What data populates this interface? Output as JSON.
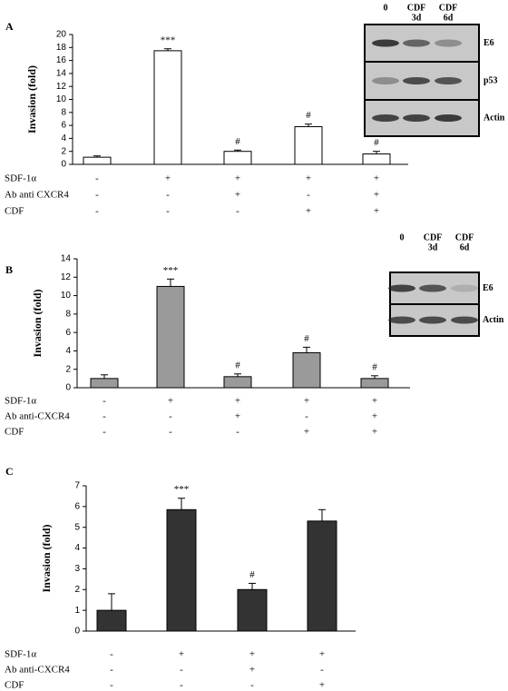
{
  "chart_data": [
    {
      "type": "bar",
      "panel": "A",
      "y_label": "Invasion (fold)",
      "color": "#ffffff",
      "values": [
        1.1,
        17.5,
        2.0,
        5.8,
        1.6
      ],
      "errors": [
        0.2,
        0.3,
        0.2,
        0.4,
        0.4
      ],
      "annotations": [
        null,
        "***",
        "#",
        "#",
        "#"
      ],
      "ylim": [
        0,
        20
      ],
      "yticks": [
        0,
        2,
        4,
        6,
        8,
        10,
        12,
        14,
        16,
        18,
        20
      ],
      "conditions": [
        {
          "label": "SDF-1α",
          "signs": [
            "-",
            "+",
            "+",
            "+",
            "+"
          ]
        },
        {
          "label": "Ab anti CXCR4",
          "signs": [
            "-",
            "-",
            "+",
            "-",
            "+"
          ]
        },
        {
          "label": "CDF",
          "signs": [
            "-",
            "-",
            "-",
            "+",
            "+"
          ]
        }
      ],
      "blot": {
        "columns": [
          [
            "0"
          ],
          [
            "CDF",
            "3d"
          ],
          [
            "CDF",
            "6d"
          ]
        ],
        "rows": [
          "E6",
          "p53",
          "Actin"
        ]
      }
    },
    {
      "type": "bar",
      "panel": "B",
      "y_label": "Invasion (fold)",
      "color": "#9a9a9a",
      "values": [
        1.0,
        11.0,
        1.2,
        3.8,
        1.0
      ],
      "errors": [
        0.4,
        0.8,
        0.3,
        0.6,
        0.3
      ],
      "annotations": [
        null,
        "***",
        "#",
        "#",
        "#"
      ],
      "ylim": [
        0,
        14
      ],
      "yticks": [
        0,
        2,
        4,
        6,
        8,
        10,
        12,
        14
      ],
      "conditions": [
        {
          "label": "SDF-1α",
          "signs": [
            "-",
            "+",
            "+",
            "+",
            "+"
          ]
        },
        {
          "label": "Ab anti-CXCR4",
          "signs": [
            "-",
            "-",
            "+",
            "-",
            "+"
          ]
        },
        {
          "label": "CDF",
          "signs": [
            "-",
            "-",
            "-",
            "+",
            "+"
          ]
        }
      ],
      "blot": {
        "columns": [
          [
            "0"
          ],
          [
            "CDF",
            "3d"
          ],
          [
            "CDF",
            "6d"
          ]
        ],
        "rows": [
          "E6",
          "Actin"
        ]
      }
    },
    {
      "type": "bar",
      "panel": "C",
      "y_label": "Invasion (fold)",
      "color": "#333333",
      "values": [
        1.0,
        5.85,
        2.0,
        5.3
      ],
      "errors": [
        0.8,
        0.55,
        0.3,
        0.55
      ],
      "annotations": [
        null,
        "***",
        "#",
        null
      ],
      "ylim": [
        0,
        7
      ],
      "yticks": [
        0,
        1,
        2,
        3,
        4,
        5,
        6,
        7
      ],
      "conditions": [
        {
          "label": "SDF-1α",
          "signs": [
            "-",
            "+",
            "+",
            "+"
          ]
        },
        {
          "label": "Ab anti-CXCR4",
          "signs": [
            "-",
            "-",
            "+",
            "-"
          ]
        },
        {
          "label": "CDF",
          "signs": [
            "-",
            "-",
            "-",
            "+"
          ]
        }
      ]
    }
  ]
}
